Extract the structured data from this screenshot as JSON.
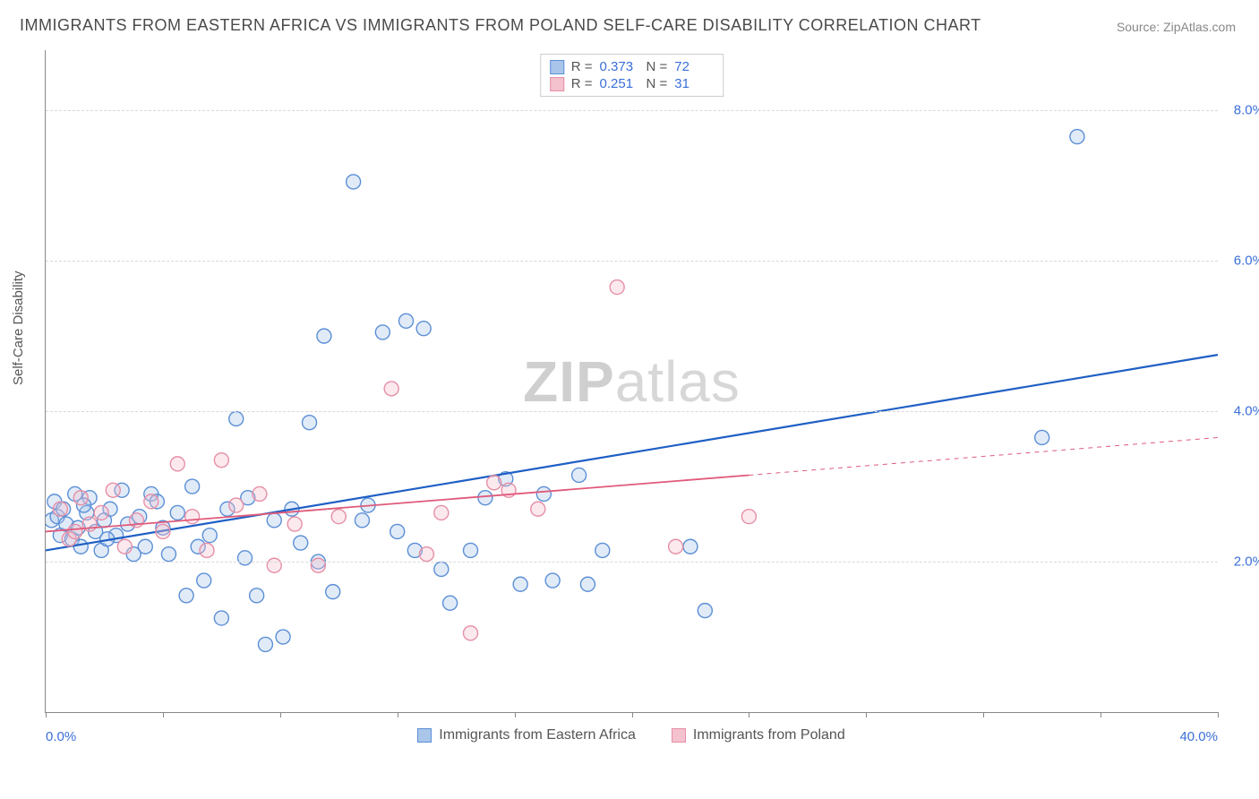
{
  "title": "IMMIGRANTS FROM EASTERN AFRICA VS IMMIGRANTS FROM POLAND SELF-CARE DISABILITY CORRELATION CHART",
  "source_label": "Source:",
  "source_value": "ZipAtlas.com",
  "watermark_a": "ZIP",
  "watermark_b": "atlas",
  "ylabel": "Self-Care Disability",
  "chart": {
    "type": "scatter",
    "background_color": "#ffffff",
    "grid_color": "#d8d8d8",
    "axis_color": "#888888",
    "xlim": [
      0,
      40
    ],
    "ylim": [
      0,
      8.8
    ],
    "x_ticks": [
      0,
      4,
      8,
      12,
      16,
      20,
      24,
      28,
      32,
      36,
      40
    ],
    "x_tick_labels": {
      "0": "0.0%",
      "40": "40.0%"
    },
    "y_ticks": [
      2,
      4,
      6,
      8
    ],
    "y_tick_labels": {
      "2": "2.0%",
      "4": "4.0%",
      "6": "6.0%",
      "8": "8.0%"
    },
    "tick_label_color": "#3a6fd8",
    "tick_label_fontsize": 15,
    "marker_radius": 8,
    "marker_fill_opacity": 0.35,
    "marker_stroke_width": 1.4,
    "series": [
      {
        "name": "Immigrants from Eastern Africa",
        "color_stroke": "#5b8fd6",
        "color_fill": "#a9c6ea",
        "r_value": "0.373",
        "n_value": "72",
        "regression": {
          "x0": 0,
          "y0": 2.15,
          "x1": 40,
          "y1": 4.75,
          "color": "#1f5fc4",
          "width": 2.2,
          "extrapolate_from_x": null
        },
        "points": [
          [
            0.2,
            2.55
          ],
          [
            0.3,
            2.8
          ],
          [
            0.4,
            2.6
          ],
          [
            0.5,
            2.35
          ],
          [
            0.6,
            2.7
          ],
          [
            0.7,
            2.5
          ],
          [
            0.9,
            2.3
          ],
          [
            1.0,
            2.9
          ],
          [
            1.1,
            2.45
          ],
          [
            1.2,
            2.2
          ],
          [
            1.4,
            2.65
          ],
          [
            1.5,
            2.85
          ],
          [
            1.7,
            2.4
          ],
          [
            1.9,
            2.15
          ],
          [
            2.0,
            2.55
          ],
          [
            2.2,
            2.7
          ],
          [
            2.4,
            2.35
          ],
          [
            2.6,
            2.95
          ],
          [
            2.8,
            2.5
          ],
          [
            3.0,
            2.1
          ],
          [
            3.2,
            2.6
          ],
          [
            3.4,
            2.2
          ],
          [
            3.6,
            2.9
          ],
          [
            4.0,
            2.45
          ],
          [
            4.2,
            2.1
          ],
          [
            4.5,
            2.65
          ],
          [
            4.8,
            1.55
          ],
          [
            5.0,
            3.0
          ],
          [
            5.4,
            1.75
          ],
          [
            5.6,
            2.35
          ],
          [
            6.0,
            1.25
          ],
          [
            6.2,
            2.7
          ],
          [
            6.5,
            3.9
          ],
          [
            6.8,
            2.05
          ],
          [
            7.2,
            1.55
          ],
          [
            7.5,
            0.9
          ],
          [
            7.8,
            2.55
          ],
          [
            8.1,
            1.0
          ],
          [
            8.4,
            2.7
          ],
          [
            9.0,
            3.85
          ],
          [
            9.3,
            2.0
          ],
          [
            9.5,
            5.0
          ],
          [
            9.8,
            1.6
          ],
          [
            10.5,
            7.05
          ],
          [
            10.8,
            2.55
          ],
          [
            11.0,
            2.75
          ],
          [
            11.5,
            5.05
          ],
          [
            12.0,
            2.4
          ],
          [
            12.3,
            5.2
          ],
          [
            12.6,
            2.15
          ],
          [
            12.9,
            5.1
          ],
          [
            13.5,
            1.9
          ],
          [
            13.8,
            1.45
          ],
          [
            14.5,
            2.15
          ],
          [
            15.0,
            2.85
          ],
          [
            15.7,
            3.1
          ],
          [
            16.2,
            1.7
          ],
          [
            17.0,
            2.9
          ],
          [
            17.3,
            1.75
          ],
          [
            18.2,
            3.15
          ],
          [
            18.5,
            1.7
          ],
          [
            19.0,
            2.15
          ],
          [
            22.0,
            2.2
          ],
          [
            22.5,
            1.35
          ],
          [
            34.0,
            3.65
          ],
          [
            35.2,
            7.65
          ],
          [
            1.3,
            2.75
          ],
          [
            2.1,
            2.3
          ],
          [
            3.8,
            2.8
          ],
          [
            5.2,
            2.2
          ],
          [
            6.9,
            2.85
          ],
          [
            8.7,
            2.25
          ]
        ]
      },
      {
        "name": "Immigrants from Poland",
        "color_stroke": "#e68fa6",
        "color_fill": "#f4c1ce",
        "r_value": "0.251",
        "n_value": "31",
        "regression": {
          "x0": 0,
          "y0": 2.4,
          "x1": 40,
          "y1": 3.65,
          "color": "#e05a7a",
          "width": 1.8,
          "extrapolate_from_x": 24
        },
        "points": [
          [
            0.5,
            2.7
          ],
          [
            0.8,
            2.3
          ],
          [
            1.2,
            2.85
          ],
          [
            1.5,
            2.5
          ],
          [
            1.9,
            2.65
          ],
          [
            2.3,
            2.95
          ],
          [
            2.7,
            2.2
          ],
          [
            3.1,
            2.55
          ],
          [
            3.6,
            2.8
          ],
          [
            4.0,
            2.4
          ],
          [
            4.5,
            3.3
          ],
          [
            5.0,
            2.6
          ],
          [
            5.5,
            2.15
          ],
          [
            6.0,
            3.35
          ],
          [
            6.5,
            2.75
          ],
          [
            7.3,
            2.9
          ],
          [
            7.8,
            1.95
          ],
          [
            8.5,
            2.5
          ],
          [
            9.3,
            1.95
          ],
          [
            10.0,
            2.6
          ],
          [
            11.8,
            4.3
          ],
          [
            13.0,
            2.1
          ],
          [
            13.5,
            2.65
          ],
          [
            14.5,
            1.05
          ],
          [
            15.3,
            3.05
          ],
          [
            15.8,
            2.95
          ],
          [
            16.8,
            2.7
          ],
          [
            19.5,
            5.65
          ],
          [
            21.5,
            2.2
          ],
          [
            24.0,
            2.6
          ],
          [
            1.0,
            2.4
          ]
        ]
      }
    ]
  },
  "stats_legend": {
    "r_label": "R =",
    "n_label": "N ="
  },
  "bottom_legend": {
    "items": [
      "Immigrants from Eastern Africa",
      "Immigrants from Poland"
    ]
  }
}
